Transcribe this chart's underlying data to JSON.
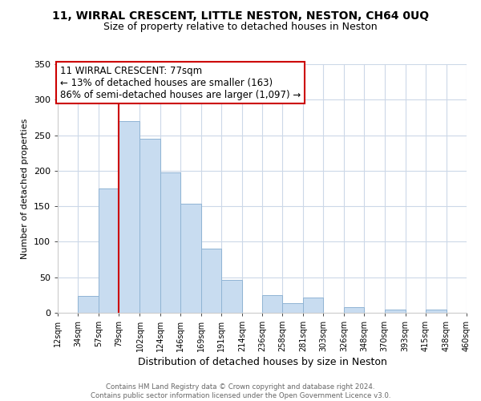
{
  "title": "11, WIRRAL CRESCENT, LITTLE NESTON, NESTON, CH64 0UQ",
  "subtitle": "Size of property relative to detached houses in Neston",
  "xlabel": "Distribution of detached houses by size in Neston",
  "ylabel": "Number of detached properties",
  "bar_color": "#c8dcf0",
  "bar_edge_color": "#90b4d4",
  "bins": [
    12,
    34,
    57,
    79,
    102,
    124,
    146,
    169,
    191,
    214,
    236,
    258,
    281,
    303,
    326,
    348,
    370,
    393,
    415,
    438,
    460
  ],
  "bin_labels": [
    "12sqm",
    "34sqm",
    "57sqm",
    "79sqm",
    "102sqm",
    "124sqm",
    "146sqm",
    "169sqm",
    "191sqm",
    "214sqm",
    "236sqm",
    "258sqm",
    "281sqm",
    "303sqm",
    "326sqm",
    "348sqm",
    "370sqm",
    "393sqm",
    "415sqm",
    "438sqm",
    "460sqm"
  ],
  "values": [
    0,
    24,
    175,
    270,
    245,
    198,
    153,
    90,
    46,
    0,
    25,
    14,
    21,
    0,
    8,
    0,
    5,
    0,
    5,
    0
  ],
  "ylim": [
    0,
    350
  ],
  "yticks": [
    0,
    50,
    100,
    150,
    200,
    250,
    300,
    350
  ],
  "property_line_x": 79,
  "annotation_title": "11 WIRRAL CRESCENT: 77sqm",
  "annotation_line1": "← 13% of detached houses are smaller (163)",
  "annotation_line2": "86% of semi-detached houses are larger (1,097) →",
  "annotation_box_color": "#ffffff",
  "annotation_box_edge": "#cc0000",
  "property_line_color": "#cc0000",
  "footer_line1": "Contains HM Land Registry data © Crown copyright and database right 2024.",
  "footer_line2": "Contains public sector information licensed under the Open Government Licence v3.0.",
  "bg_color": "#ffffff",
  "grid_color": "#ccd8e8",
  "title_fontsize": 10,
  "subtitle_fontsize": 9,
  "ylabel_fontsize": 8,
  "xlabel_fontsize": 9
}
